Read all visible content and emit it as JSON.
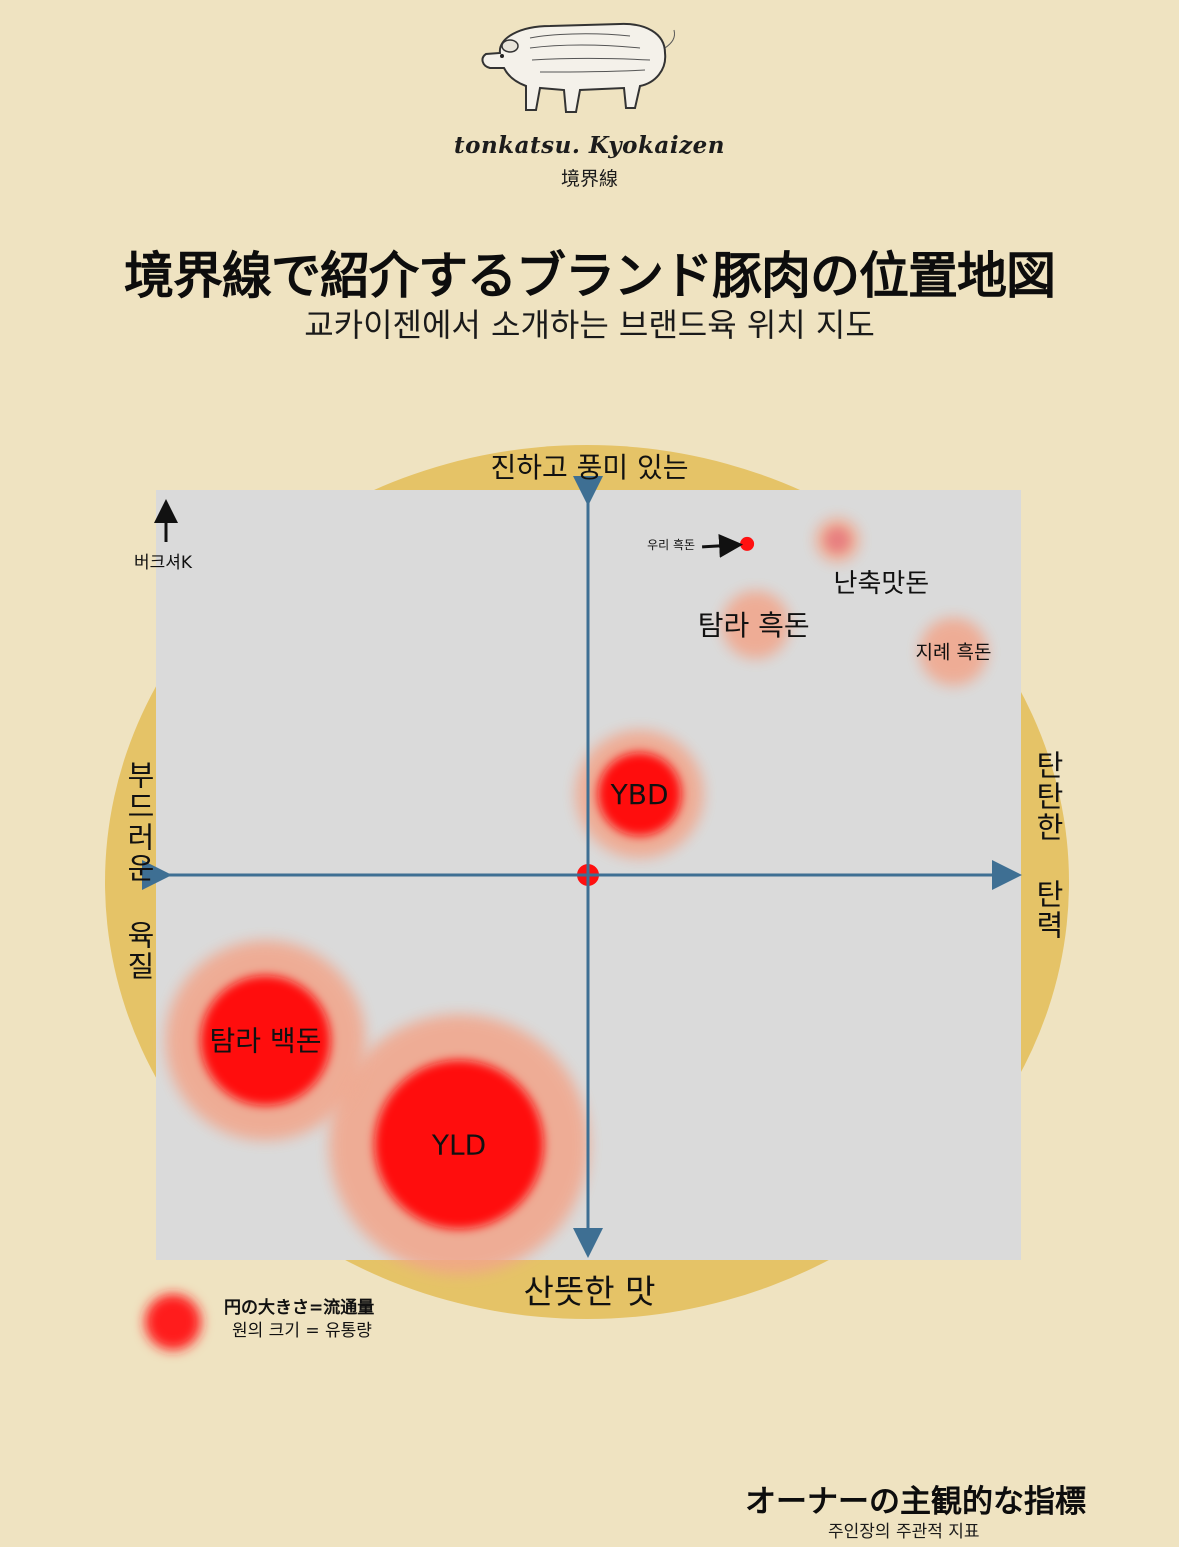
{
  "brand": {
    "name": "tonkatsu. Kyokaizen",
    "kanji": "境界線",
    "logo_icon": "pig-illustration-icon"
  },
  "title": {
    "japanese": "境界線で紹介するブランド豚肉の位置地図",
    "korean": "교카이젠에서 소개하는 브랜드육 위치 지도"
  },
  "axes": {
    "top": "진하고 풍미 있는",
    "bottom": "산뜻한 맛",
    "left": "부드러운 육질",
    "right": "탄탄한 탄력",
    "sub_axis": "버크셔K"
  },
  "legend": {
    "title_ja": "円の大きさ=流通量",
    "title_ko": "원의 크기 = 유통량"
  },
  "footer": {
    "title_ja": "オーナーの主観的な指標",
    "title_ko": "주인장의 주관적 지표"
  },
  "colors": {
    "background": "#efe3c1",
    "circle": "#e5c367",
    "panel": "#dadada",
    "axis": "#3e6f93",
    "bubble_core": "#ff1010",
    "bubble_halo": "#f2a58a"
  },
  "chart_data": {
    "type": "scatter",
    "title": "境界線で紹介するブランド豚肉の位置地図",
    "xlabel_left": "부드러운 육질",
    "xlabel_right": "탄탄한 탄력",
    "ylabel_top": "진하고 풍미 있는",
    "ylabel_bottom": "산뜻한 맛",
    "xlim": [
      -10,
      10
    ],
    "ylim": [
      -10,
      10
    ],
    "grid": false,
    "legend_position": "bottom-left",
    "points": [
      {
        "label": "우리 흑돈",
        "x": 3.7,
        "y": 8.6,
        "size": 0.3,
        "intensity": "high",
        "annotation": "arrow"
      },
      {
        "label": "난축맛돈",
        "x": 5.8,
        "y": 8.7,
        "size": 1.0,
        "intensity": "low"
      },
      {
        "label": "탐라 흑돈",
        "x": 3.9,
        "y": 6.5,
        "size": 2.0,
        "intensity": "low"
      },
      {
        "label": "지례 흑돈",
        "x": 8.5,
        "y": 5.8,
        "size": 2.0,
        "intensity": "low"
      },
      {
        "label": "YBD",
        "x": 1.2,
        "y": 2.1,
        "size": 4.5,
        "intensity": "high"
      },
      {
        "label": "탐라 백돈",
        "x": -7.5,
        "y": -4.3,
        "size": 7.5,
        "intensity": "high"
      },
      {
        "label": "YLD",
        "x": -3.0,
        "y": -7.0,
        "size": 10.0,
        "intensity": "high"
      },
      {
        "label": "",
        "x": 0.0,
        "y": 0.0,
        "size": 0.6,
        "intensity": "high",
        "role": "origin"
      }
    ]
  }
}
